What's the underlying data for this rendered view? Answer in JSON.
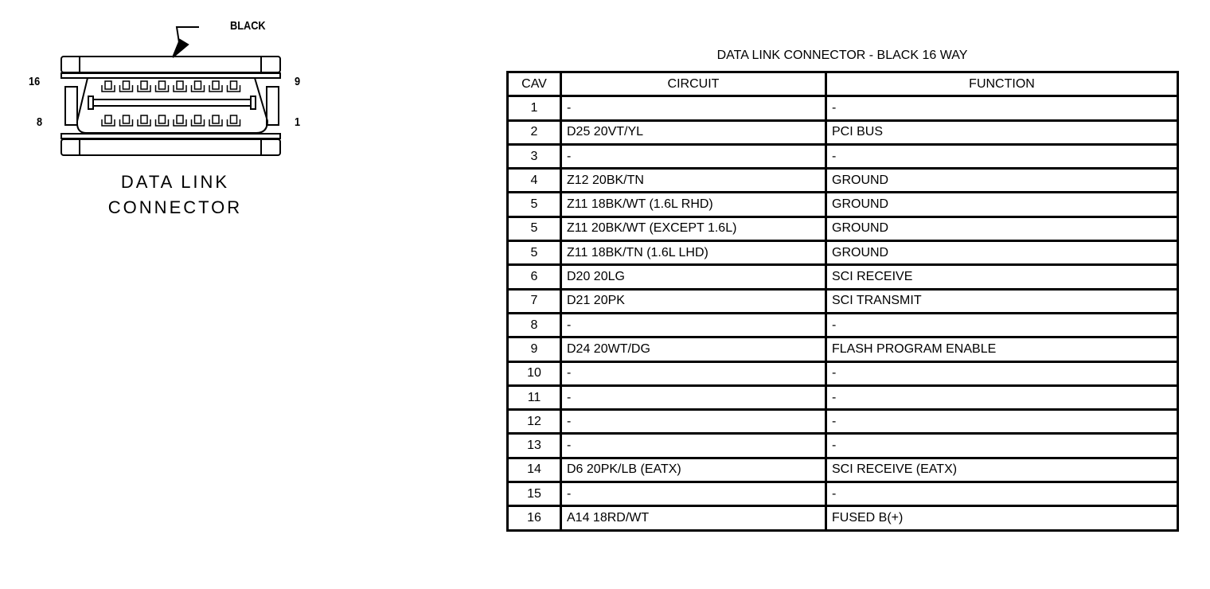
{
  "connector": {
    "callout": "BLACK",
    "pin_labels": {
      "top_left": "16",
      "top_right": "9",
      "bottom_left": "8",
      "bottom_right": "1"
    },
    "caption_line1": "DATA LINK",
    "caption_line2": "CONNECTOR"
  },
  "table": {
    "title": "DATA LINK CONNECTOR - BLACK 16 WAY",
    "headers": [
      "CAV",
      "CIRCUIT",
      "FUNCTION"
    ],
    "rows": [
      [
        "1",
        "-",
        "-"
      ],
      [
        "2",
        "D25 20VT/YL",
        "PCI BUS"
      ],
      [
        "3",
        "-",
        "-"
      ],
      [
        "4",
        "Z12 20BK/TN",
        "GROUND"
      ],
      [
        "5",
        "Z11 18BK/WT (1.6L RHD)",
        "GROUND"
      ],
      [
        "5",
        "Z11 20BK/WT (EXCEPT 1.6L)",
        "GROUND"
      ],
      [
        "5",
        "Z11 18BK/TN (1.6L LHD)",
        "GROUND"
      ],
      [
        "6",
        "D20 20LG",
        "SCI RECEIVE"
      ],
      [
        "7",
        "D21 20PK",
        "SCI TRANSMIT"
      ],
      [
        "8",
        "-",
        "-"
      ],
      [
        "9",
        "D24 20WT/DG",
        "FLASH PROGRAM ENABLE"
      ],
      [
        "10",
        "-",
        "-"
      ],
      [
        "11",
        "-",
        "-"
      ],
      [
        "12",
        "-",
        "-"
      ],
      [
        "13",
        "-",
        "-"
      ],
      [
        "14",
        "D6 20PK/LB (EATX)",
        "SCI RECEIVE (EATX)"
      ],
      [
        "15",
        "-",
        "-"
      ],
      [
        "16",
        "A14 18RD/WT",
        "FUSED B(+)"
      ]
    ]
  }
}
